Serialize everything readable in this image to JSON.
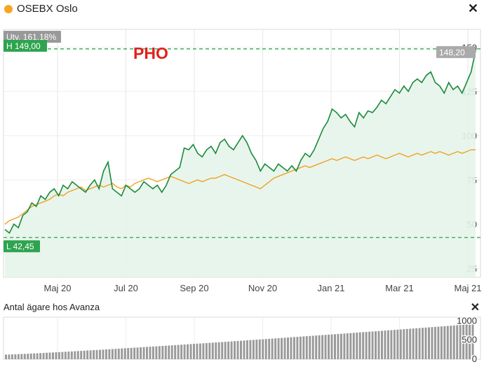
{
  "header": {
    "title": "OSEBX Oslo",
    "dot_color": "#f5a623",
    "close_icon": "close-icon"
  },
  "badges": {
    "change": "Utv. 161,18%",
    "high": "H 149,00",
    "low": "L 42,45",
    "last": "148,20"
  },
  "overlay_text": "PHO",
  "colors": {
    "stock": "#1a8a3a",
    "index": "#f0a020",
    "area": "#e6f4ea",
    "high_line": "#2ea44f",
    "overlay": "#e0201a"
  },
  "chart_data": [
    {
      "type": "line",
      "x_labels": [
        "Maj 20",
        "Jul 20",
        "Sep 20",
        "Nov 20",
        "Jan 21",
        "Mar 21",
        "Maj 21"
      ],
      "y_ticks": [
        25,
        50,
        75,
        100,
        125,
        150
      ],
      "ylim": [
        20,
        160
      ],
      "high": 149.0,
      "low": 42.45,
      "last": 148.2,
      "series": [
        {
          "values": [
            47,
            45,
            50,
            48,
            55,
            57,
            62,
            60,
            66,
            64,
            68,
            70,
            66,
            72,
            70,
            74,
            72,
            70,
            68,
            72,
            75,
            70,
            80,
            85,
            70,
            68,
            66,
            72,
            70,
            68,
            70,
            74,
            72,
            70,
            72,
            68,
            72,
            78,
            80,
            82,
            93,
            92,
            95,
            90,
            88,
            92,
            94,
            90,
            96,
            98,
            94,
            92,
            96,
            100,
            96,
            90,
            86,
            80,
            84,
            82,
            80,
            84,
            82,
            80,
            83,
            80,
            86,
            90,
            88,
            92,
            98,
            104,
            108,
            115,
            113,
            110,
            112,
            108,
            105,
            113,
            110,
            114,
            113,
            116,
            120,
            118,
            122,
            126,
            124,
            128,
            125,
            130,
            132,
            130,
            134,
            136,
            130,
            128,
            124,
            130,
            126,
            128,
            124,
            130,
            136,
            148
          ]
        },
        {
          "values": [
            50,
            52,
            53,
            54,
            56,
            58,
            60,
            61,
            62,
            63,
            64,
            66,
            67,
            66,
            68,
            69,
            70,
            71,
            69,
            70,
            71,
            72,
            71,
            72,
            73,
            71,
            70,
            72,
            71,
            73,
            74,
            75,
            76,
            75,
            74,
            75,
            76,
            77,
            76,
            75,
            74,
            73,
            74,
            75,
            74,
            75,
            76,
            76,
            77,
            78,
            77,
            76,
            75,
            74,
            73,
            72,
            71,
            70,
            72,
            74,
            76,
            77,
            78,
            79,
            80,
            81,
            82,
            83,
            82,
            83,
            84,
            85,
            86,
            87,
            86,
            87,
            88,
            87,
            86,
            87,
            88,
            87,
            88,
            89,
            88,
            87,
            88,
            89,
            90,
            89,
            88,
            89,
            90,
            89,
            90,
            91,
            90,
            91,
            90,
            89,
            90,
            91,
            90,
            91,
            92,
            92
          ]
        }
      ]
    },
    {
      "type": "bar",
      "title": "Antal ägare hos Avanza",
      "y_ticks": [
        0,
        500,
        1000
      ],
      "ylim": [
        0,
        1100
      ],
      "bar_start": 120,
      "bar_end": 920,
      "bar_count": 150
    }
  ]
}
